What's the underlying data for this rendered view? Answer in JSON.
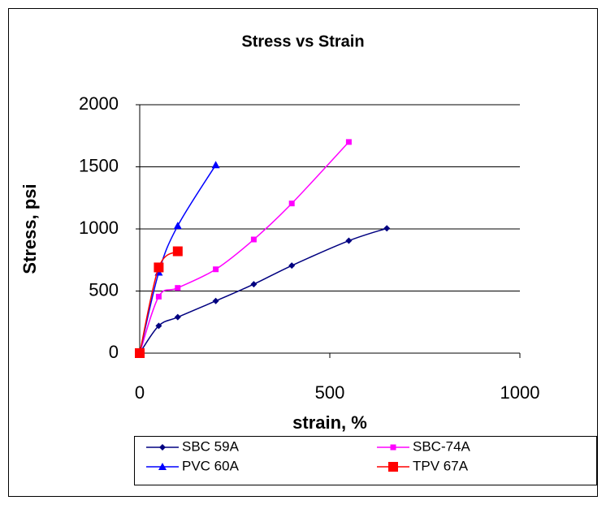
{
  "chart_data": {
    "type": "line",
    "title": "Stress vs Strain",
    "xlabel": "strain, %",
    "ylabel": "Stress, psi",
    "xlim": [
      0,
      1000
    ],
    "xticks": [
      0,
      500,
      1000
    ],
    "ylim": [
      0,
      2000
    ],
    "yticks": [
      0,
      500,
      1000,
      1500,
      2000
    ],
    "grid": true,
    "legend": "bottom",
    "series": [
      {
        "name": "SBC 59A",
        "color": "#000080",
        "marker": "diamond",
        "x": [
          0,
          50,
          100,
          200,
          300,
          400,
          550,
          650
        ],
        "values": [
          0,
          220,
          290,
          420,
          555,
          705,
          905,
          1005
        ]
      },
      {
        "name": "SBC-74A",
        "color": "#ff00ff",
        "marker": "square",
        "x": [
          0,
          50,
          100,
          200,
          300,
          400,
          550
        ],
        "values": [
          0,
          455,
          525,
          675,
          915,
          1205,
          1700
        ]
      },
      {
        "name": "PVC  60A",
        "color": "#0000ff",
        "marker": "triangle",
        "x": [
          0,
          50,
          100,
          200
        ],
        "values": [
          0,
          650,
          1025,
          1515
        ]
      },
      {
        "name": "TPV   67A",
        "color": "#ff0000",
        "marker": "bigsquare",
        "x": [
          0,
          50,
          100
        ],
        "values": [
          0,
          690,
          820
        ]
      }
    ]
  }
}
